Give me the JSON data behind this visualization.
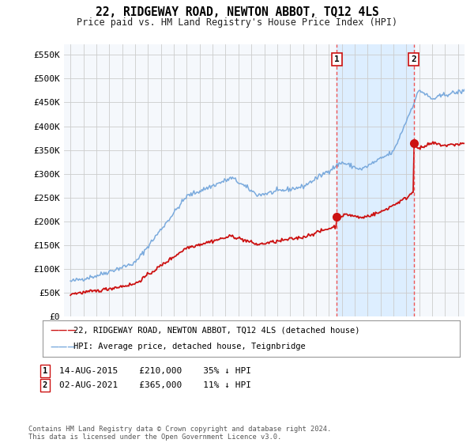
{
  "title": "22, RIDGEWAY ROAD, NEWTON ABBOT, TQ12 4LS",
  "subtitle": "Price paid vs. HM Land Registry's House Price Index (HPI)",
  "yticks": [
    0,
    50000,
    100000,
    150000,
    200000,
    250000,
    300000,
    350000,
    400000,
    450000,
    500000,
    550000
  ],
  "ytick_labels": [
    "£0",
    "£50K",
    "£100K",
    "£150K",
    "£200K",
    "£250K",
    "£300K",
    "£350K",
    "£400K",
    "£450K",
    "£500K",
    "£550K"
  ],
  "hpi_color": "#7aaadd",
  "price_color": "#cc1111",
  "dashed_line_color": "#ee5555",
  "shade_color": "#ddeeff",
  "marker1_date": 2015.62,
  "marker2_date": 2021.58,
  "sale1_price": 210000,
  "sale2_price": 365000,
  "legend1": "22, RIDGEWAY ROAD, NEWTON ABBOT, TQ12 4LS (detached house)",
  "legend2": "HPI: Average price, detached house, Teignbridge",
  "sale1_row": "14-AUG-2015     £210,000     35% ↓ HPI",
  "sale2_row": "02-AUG-2021     £365,000     11% ↓ HPI",
  "footer": "Contains HM Land Registry data © Crown copyright and database right 2024.\nThis data is licensed under the Open Government Licence v3.0.",
  "bg_color": "#ffffff",
  "grid_color": "#cccccc",
  "plot_bg": "#f5f8fc"
}
